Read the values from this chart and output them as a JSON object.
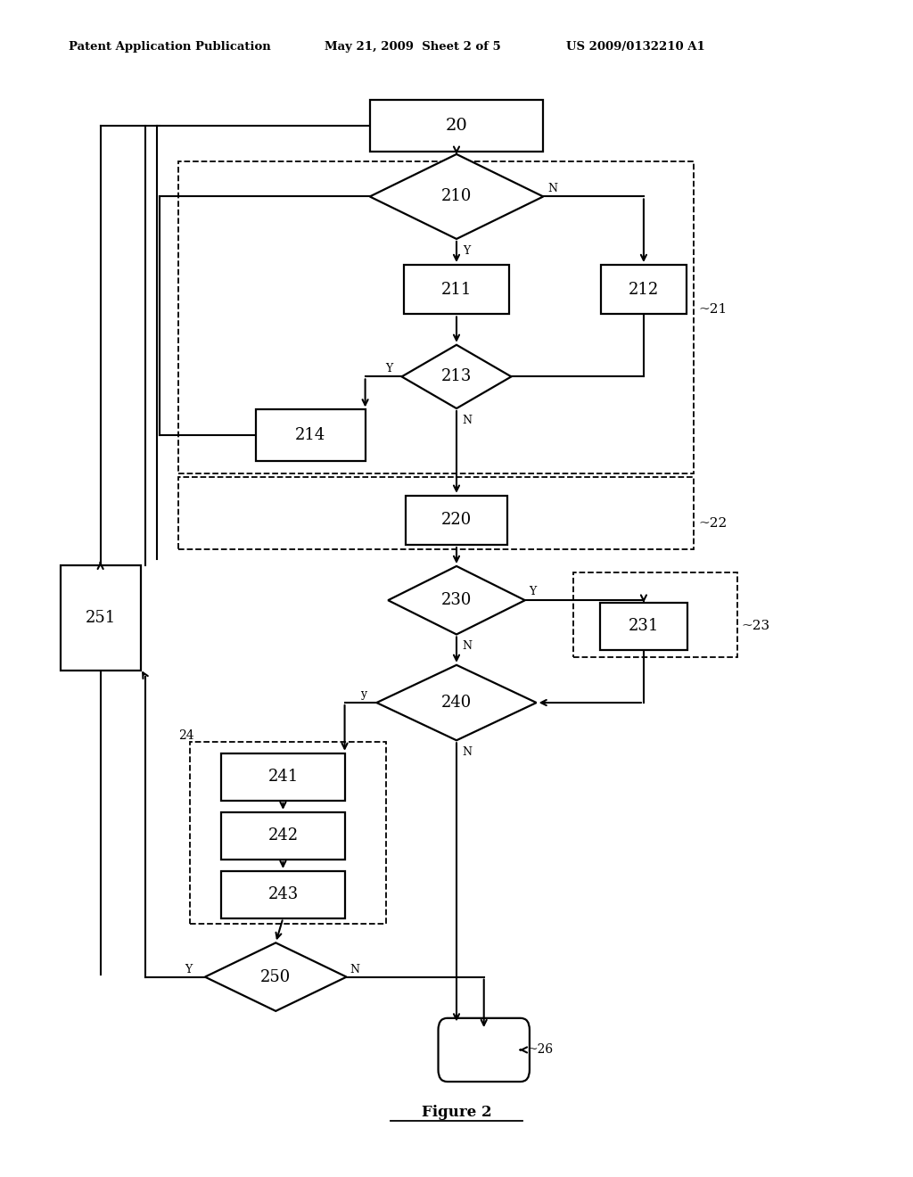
{
  "bg_color": "#ffffff",
  "header_left": "Patent Application Publication",
  "header_mid": "May 21, 2009  Sheet 2 of 5",
  "header_right": "US 2009/0132210 A1",
  "footer_label": "Figure 2"
}
